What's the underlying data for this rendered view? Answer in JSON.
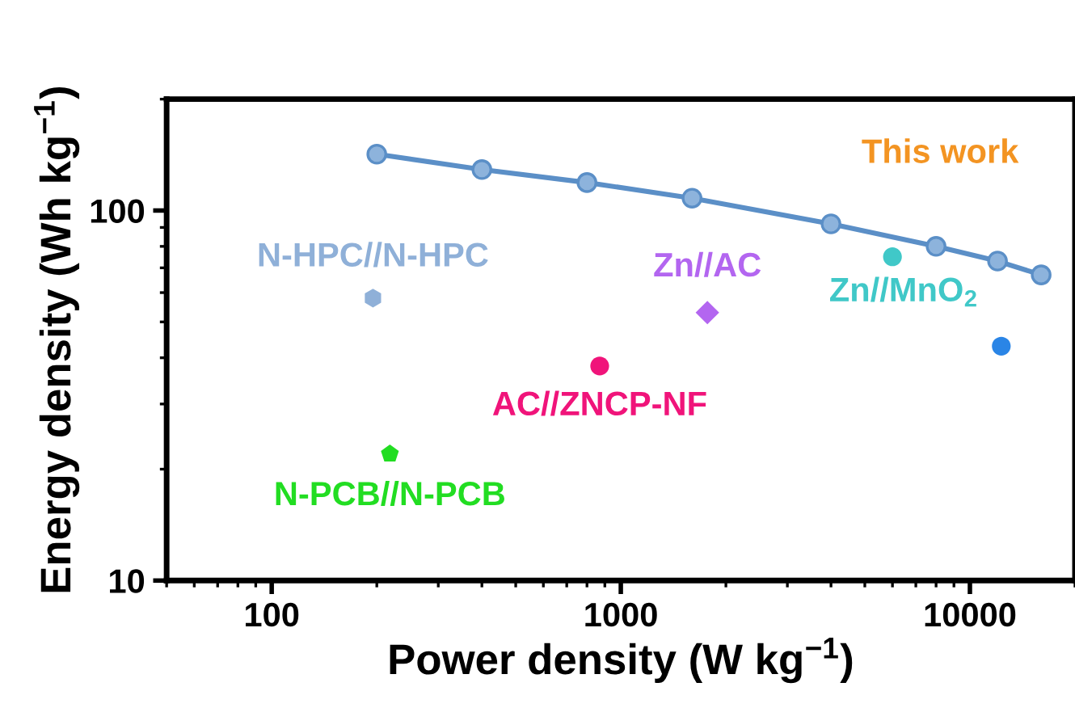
{
  "chart_data": {
    "type": "scatter",
    "xlabel": "Power density (W kg$^{−1}$)",
    "ylabel": "Energy density (Wh kg$^{−1}$)",
    "log": "xy",
    "xlim": [
      50,
      20000
    ],
    "ylim": [
      10,
      200
    ],
    "xticks": [
      100,
      1000,
      10000
    ],
    "yticks": [
      10,
      100
    ],
    "grid": false,
    "legend": false,
    "series": [
      {
        "name": "This work",
        "type": "line",
        "marker": "circle",
        "line_style": "solid",
        "color": "#5b8fc7",
        "x": [
          200,
          400,
          800,
          1600,
          4000,
          8000,
          12000,
          16000
        ],
        "values": [
          142,
          129,
          119,
          108,
          92,
          80,
          73,
          67
        ]
      },
      {
        "name": "N-HPC//N-HPC",
        "color": "#8fb0d8",
        "x": [
          195
        ],
        "values": [
          58
        ]
      },
      {
        "name": "Zn//AC",
        "marker": "diamond",
        "color": "#b366f0",
        "x": [
          1770
        ],
        "values": [
          53
        ]
      },
      {
        "name": "Zn//MnO$_{2}$",
        "marker": "circle",
        "color": "#40c8c8",
        "x": [
          6000
        ],
        "values": [
          75
        ]
      },
      {
        "marker": "circle",
        "color": "#2a85e6",
        "x": [
          12300
        ],
        "values": [
          43
        ]
      },
      {
        "name": "AC//ZNCP-NF",
        "marker": "circle",
        "color": "#f0147a",
        "x": [
          870
        ],
        "values": [
          38
        ]
      },
      {
        "name": "N-PCB//N-PCB",
        "color": "#22dd22",
        "x": [
          218
        ],
        "values": [
          22
        ]
      }
    ]
  }
}
